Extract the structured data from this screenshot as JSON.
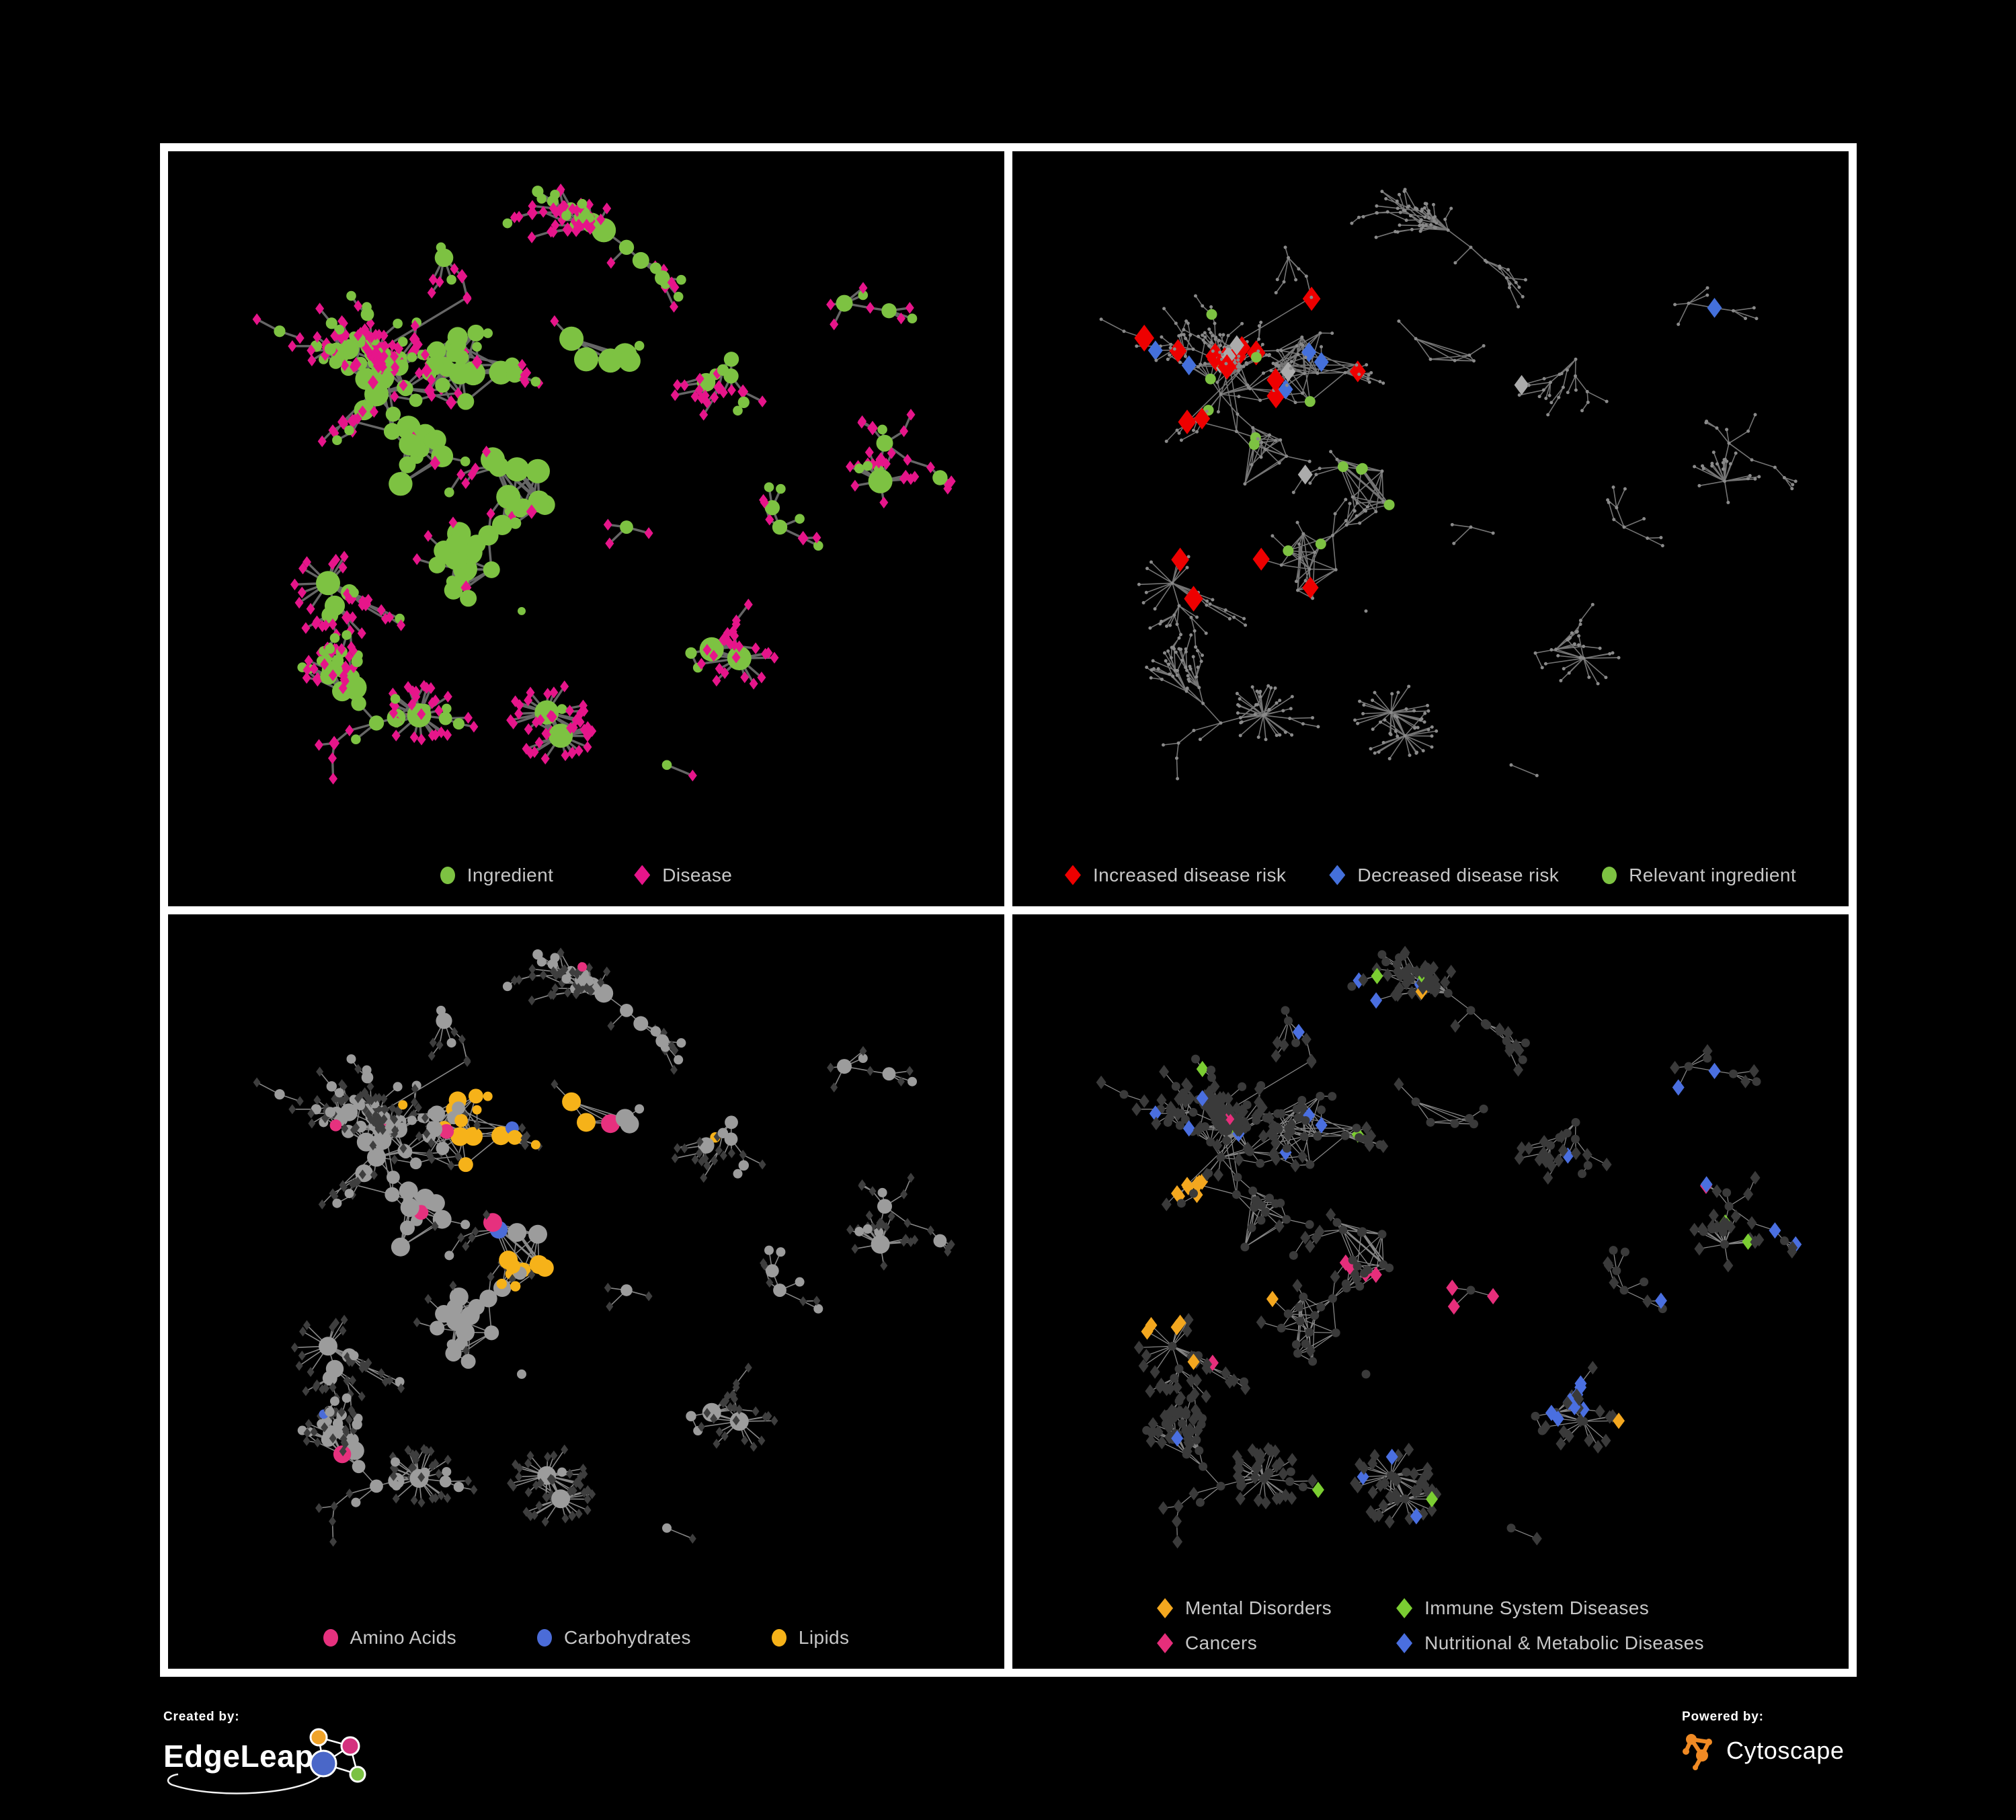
{
  "figure": {
    "background": "#000000",
    "frame_color": "#FFFFFF"
  },
  "panels": [
    {
      "id": "ingredient-disease-network",
      "legend_layout": "row",
      "legend": [
        {
          "shape": "circle",
          "color": "#7DC242",
          "label": "Ingredient"
        },
        {
          "shape": "diamond",
          "color": "#E6158A",
          "label": "Disease"
        }
      ]
    },
    {
      "id": "disease-risk-network",
      "legend_layout": "row-tight",
      "legend": [
        {
          "shape": "diamond",
          "color": "#EE0000",
          "label": "Increased disease risk"
        },
        {
          "shape": "diamond",
          "color": "#4470DB",
          "label": "Decreased disease risk"
        },
        {
          "shape": "circle",
          "color": "#7DC242",
          "label": "Relevant ingredient"
        }
      ]
    },
    {
      "id": "nutrient-class-network",
      "legend_layout": "row",
      "legend": [
        {
          "shape": "circle",
          "color": "#E6317E",
          "label": "Amino Acids"
        },
        {
          "shape": "circle",
          "color": "#4B6CD8",
          "label": "Carbohydrates"
        },
        {
          "shape": "circle",
          "color": "#F6B219",
          "label": "Lipids"
        }
      ]
    },
    {
      "id": "disease-class-network",
      "legend_layout": "grid-2col",
      "legend": [
        {
          "shape": "diamond",
          "color": "#F3A71F",
          "label": "Mental Disorders"
        },
        {
          "shape": "diamond",
          "color": "#7BCD32",
          "label": "Immune System Diseases"
        },
        {
          "shape": "diamond",
          "color": "#E62E7B",
          "label": "Cancers"
        },
        {
          "shape": "diamond",
          "color": "#4A6FE0",
          "label": "Nutritional & Metabolic Diseases"
        }
      ]
    }
  ],
  "branding": {
    "created_by": {
      "label": "Created by:",
      "name": "EdgeLeap"
    },
    "powered_by": {
      "label": "Powered by:",
      "name": "Cytoscape",
      "accent": "#F08A24"
    },
    "edgeleap_glyph_colors": {
      "blue": "#4A67C8",
      "orange": "#F0A32A",
      "pink": "#D4317E",
      "green": "#7BC143"
    }
  },
  "network": {
    "seed": 20240517,
    "tree_nodes": 545,
    "burst_min_leaves": 10,
    "burst_extra_leaves": 14,
    "web_edges": 36,
    "cross_edges": 30,
    "styles": {
      "p1": {
        "edge": "#6C6C6C",
        "edge_w": 3.4,
        "ingredient": "#7DC242",
        "disease": "#E6158A"
      },
      "p2": {
        "edge": "#7A7A7A",
        "edge_w": 1.6,
        "dot": "#8A8A8A",
        "increased": "#EE0000",
        "decreased": "#4470DB",
        "unchanged": "#ABABAB",
        "relevant": "#7DC242"
      },
      "p3": {
        "edge": "#8F8F8F",
        "edge_w": 1.6,
        "node": "#9C9C9C",
        "dim_diamond": "#3E3E3E",
        "amino": "#E6317E",
        "carb": "#4B6CD8",
        "lipid": "#F6B219"
      },
      "p4": {
        "edge": "#8C8C8C",
        "edge_w": 1.3,
        "dim": "#3A3A3A",
        "mental": "#F3A71F",
        "immune": "#7BCD32",
        "cancer": "#E62E7B",
        "nutritional": "#4A6FE0"
      }
    }
  }
}
